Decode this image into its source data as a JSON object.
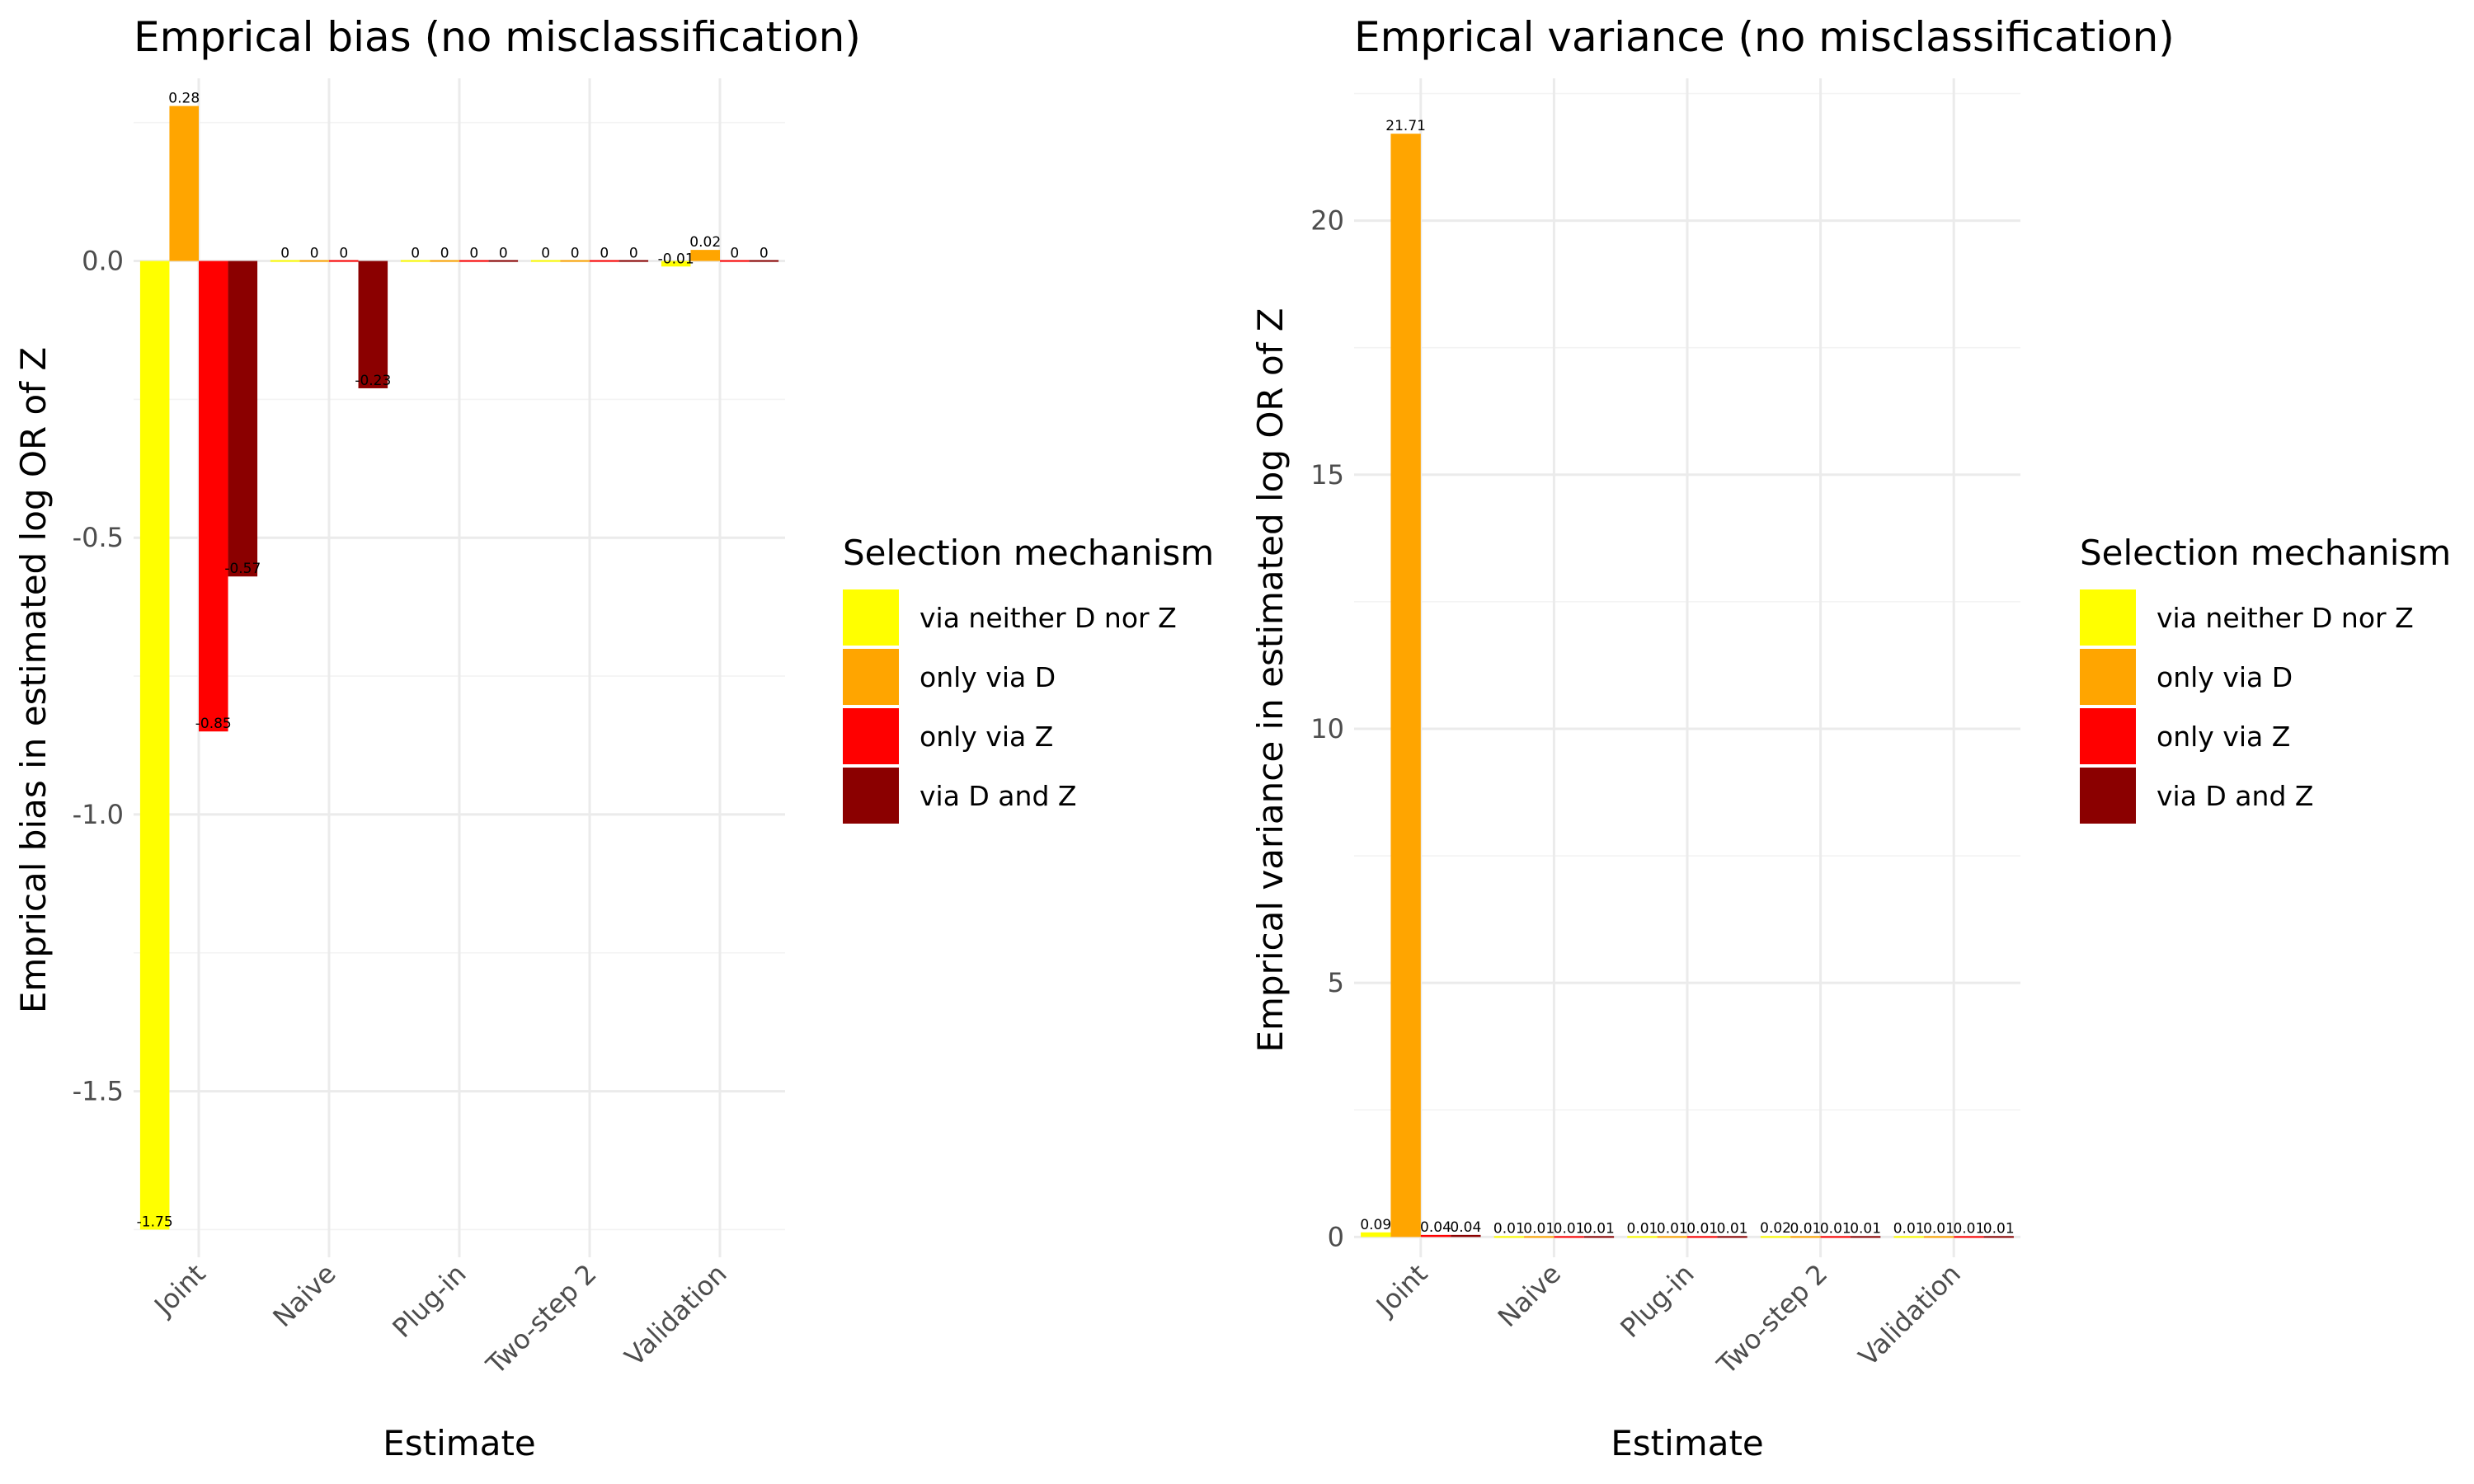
{
  "legend": {
    "title": "Selection mechanism",
    "entries": [
      {
        "label": "via neither D nor Z",
        "color": "#FFFF00"
      },
      {
        "label": "only via D",
        "color": "#FFA500"
      },
      {
        "label": "only via Z",
        "color": "#FF0000"
      },
      {
        "label": "via D and Z",
        "color": "#8B0000"
      }
    ]
  },
  "chart_data": [
    {
      "type": "bar",
      "title": "Emprical bias (no misclassification)",
      "xlabel": "Estimate",
      "ylabel": "Emprical bias in estimated log OR of Z",
      "categories": [
        "Joint",
        "Naive",
        "Plug-in",
        "Two-step 2",
        "Validation"
      ],
      "ylim": [
        -1.8,
        0.33
      ],
      "yticks": [
        -1.5,
        -1.0,
        -0.5,
        0.0
      ],
      "ytick_labels": [
        "-1.5",
        "-1.0",
        "-0.5",
        "0.0"
      ],
      "grid": true,
      "legend_position": "right",
      "series": [
        {
          "name": "via neither D nor Z",
          "values": [
            -1.75,
            0,
            0,
            0,
            -0.01
          ],
          "labels": [
            "-1.75",
            "0",
            "0",
            "0",
            "-0.01"
          ]
        },
        {
          "name": "only via D",
          "values": [
            0.28,
            0,
            0,
            0,
            0.02
          ],
          "labels": [
            "0.28",
            "0",
            "0",
            "0",
            "0.02"
          ]
        },
        {
          "name": "only via Z",
          "values": [
            -0.85,
            0,
            0,
            0,
            0
          ],
          "labels": [
            "-0.85",
            "0",
            "0",
            "0",
            "0"
          ]
        },
        {
          "name": "via D and Z",
          "values": [
            -0.57,
            -0.23,
            0,
            0,
            0
          ],
          "labels": [
            "-0.57",
            "-0.23",
            "0",
            "0",
            "0"
          ]
        }
      ]
    },
    {
      "type": "bar",
      "title": "Emprical variance (no misclassification)",
      "xlabel": "Estimate",
      "ylabel": "Emprical variance in estimated log OR of Z",
      "categories": [
        "Joint",
        "Naive",
        "Plug-in",
        "Two-step 2",
        "Validation"
      ],
      "ylim": [
        -0.4,
        22.8
      ],
      "yticks": [
        0,
        5,
        10,
        15,
        20
      ],
      "ytick_labels": [
        "0",
        "5",
        "10",
        "15",
        "20"
      ],
      "grid": true,
      "legend_position": "right",
      "series": [
        {
          "name": "via neither D nor Z",
          "values": [
            0.09,
            0.01,
            0.01,
            0.02,
            0.01
          ],
          "labels": [
            "0.09",
            "0.01",
            "0.01",
            "0.02",
            "0.01"
          ]
        },
        {
          "name": "only via D",
          "values": [
            21.71,
            0.01,
            0.01,
            0.01,
            0.01
          ],
          "labels": [
            "21.71",
            "0.01",
            "0.01",
            "0.01",
            "0.01"
          ]
        },
        {
          "name": "only via Z",
          "values": [
            0.04,
            0.01,
            0.01,
            0.01,
            0.01
          ],
          "labels": [
            "0.04",
            "0.01",
            "0.01",
            "0.01",
            "0.01"
          ]
        },
        {
          "name": "via D and Z",
          "values": [
            0.04,
            0.01,
            0.01,
            0.01,
            0.01
          ],
          "labels": [
            "0.04",
            "0.01",
            "0.01",
            "0.01",
            "0.01"
          ]
        }
      ]
    }
  ]
}
